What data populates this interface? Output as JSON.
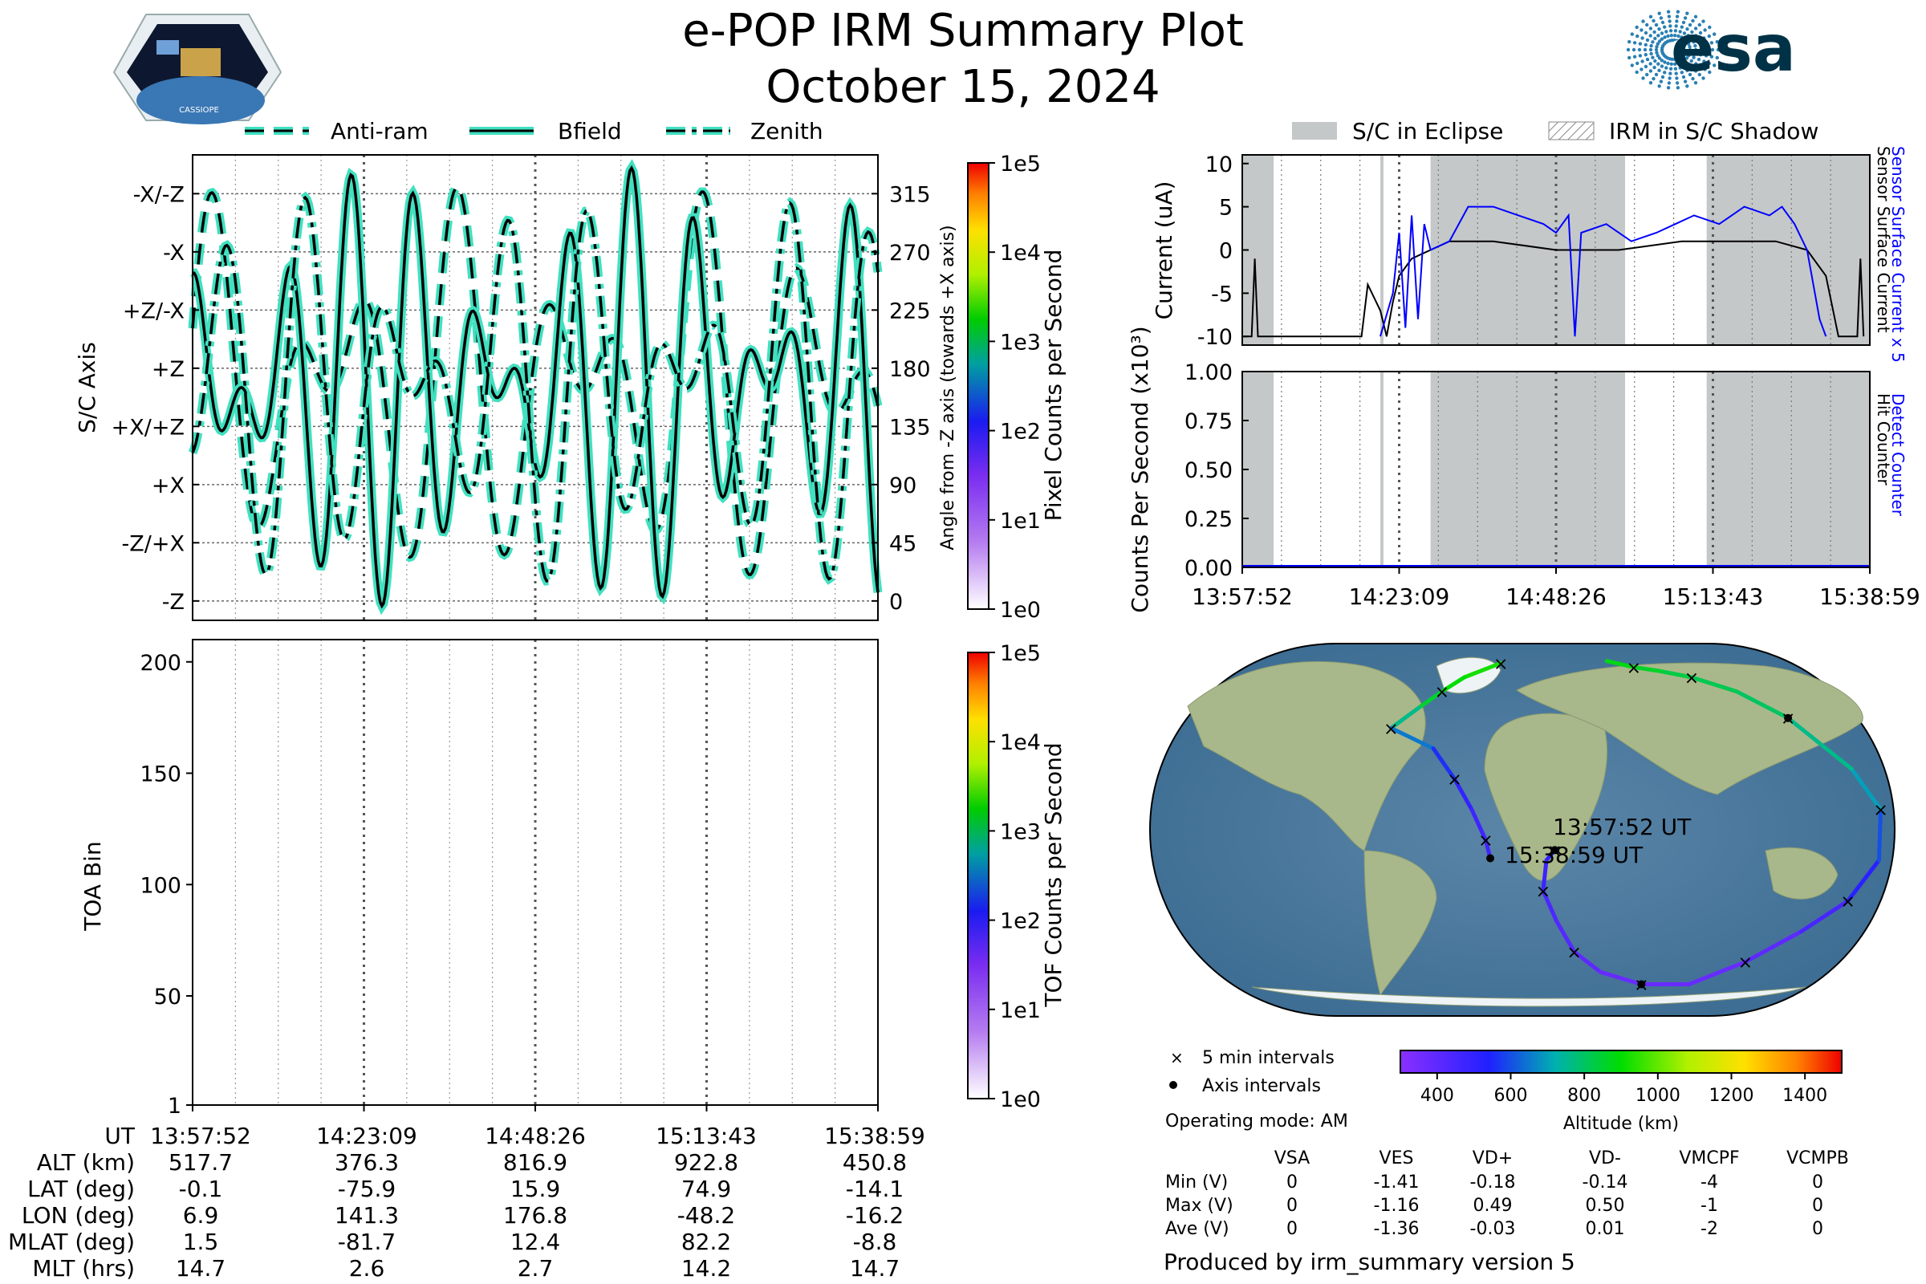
{
  "header": {
    "title": "e-POP IRM Summary Plot",
    "date": "October 15, 2024",
    "mission_logo": "CASSIOPE",
    "agency_logo": "esa",
    "colors": {
      "esa_blue": "#003247",
      "esa_light": "#2a7fb3"
    }
  },
  "time_ticks": [
    "13:57:52",
    "14:23:09",
    "14:48:26",
    "15:13:43",
    "15:38:59"
  ],
  "orientation_legend": [
    "Anti-ram",
    "Bfield",
    "Zenith"
  ],
  "eclipse_legend": [
    "S/C in Eclipse",
    "IRM in S/C Shadow"
  ],
  "chart_data": [
    {
      "id": "sc_axis_panel",
      "type": "line",
      "ylabel": "S/C Axis",
      "y2label": "Angle from -Z axis (towards +X axis)",
      "ylim": [
        -15,
        345
      ],
      "axis_labels": [
        "-Z",
        "-Z/+X",
        "+X",
        "+X/+Z",
        "+Z",
        "+Z/-X",
        "-X",
        "-X/-Z"
      ],
      "angle_ticks": [
        0,
        45,
        90,
        135,
        180,
        225,
        270,
        315
      ],
      "colorbar": {
        "label": "Pixel Counts per Second",
        "ticks": [
          "1e0",
          "1e1",
          "1e2",
          "1e3",
          "1e4",
          "1e5"
        ]
      },
      "line_color": "#40e0c0",
      "series": [
        {
          "name": "Anti-ram",
          "style": "dashed"
        },
        {
          "name": "Bfield",
          "style": "solid"
        },
        {
          "name": "Zenith",
          "style": "dashdot"
        }
      ]
    },
    {
      "id": "toa_panel",
      "type": "heatmap",
      "ylabel": "TOA Bin",
      "ylim": [
        1,
        210
      ],
      "yticks": [
        1,
        50,
        100,
        150,
        200
      ],
      "colorbar": {
        "label": "TOF Counts per Second",
        "ticks": [
          "1e0",
          "1e1",
          "1e2",
          "1e3",
          "1e4",
          "1e5"
        ]
      }
    },
    {
      "id": "current_panel",
      "type": "line",
      "ylabel": "Current (uA)",
      "ylim": [
        -11,
        11
      ],
      "yticks": [
        -10,
        -5,
        0,
        5,
        10
      ],
      "right_label_blue": "Sensor Surface Current x 5",
      "right_label_black": "Sensor Surface Current",
      "eclipse_intervals": [
        [
          0,
          0.05
        ],
        [
          0.22,
          0.225
        ],
        [
          0.3,
          0.61
        ],
        [
          0.74,
          1.0
        ]
      ],
      "series": [
        {
          "color": "#000000",
          "points": [
            [
              0,
              -10
            ],
            [
              0.015,
              -10
            ],
            [
              0.02,
              -1
            ],
            [
              0.025,
              -10
            ],
            [
              0.19,
              -10
            ],
            [
              0.2,
              -4
            ],
            [
              0.22,
              -7
            ],
            [
              0.23,
              -10
            ],
            [
              0.24,
              -6
            ],
            [
              0.25,
              -3
            ],
            [
              0.27,
              -1
            ],
            [
              0.3,
              0
            ],
            [
              0.33,
              1
            ],
            [
              0.4,
              1
            ],
            [
              0.5,
              0
            ],
            [
              0.6,
              0
            ],
            [
              0.7,
              1
            ],
            [
              0.85,
              1
            ],
            [
              0.9,
              0
            ],
            [
              0.93,
              -3
            ],
            [
              0.95,
              -10
            ],
            [
              0.98,
              -10
            ],
            [
              0.985,
              -1
            ],
            [
              0.99,
              -10
            ]
          ]
        },
        {
          "color": "#0000ff",
          "points": [
            [
              0.22,
              -10
            ],
            [
              0.24,
              -5
            ],
            [
              0.25,
              2
            ],
            [
              0.26,
              -9
            ],
            [
              0.27,
              4
            ],
            [
              0.28,
              -8
            ],
            [
              0.29,
              3
            ],
            [
              0.3,
              0
            ],
            [
              0.33,
              1
            ],
            [
              0.36,
              5
            ],
            [
              0.4,
              5
            ],
            [
              0.44,
              4
            ],
            [
              0.48,
              3
            ],
            [
              0.5,
              2
            ],
            [
              0.52,
              4
            ],
            [
              0.53,
              -10
            ],
            [
              0.54,
              2
            ],
            [
              0.58,
              3
            ],
            [
              0.62,
              1
            ],
            [
              0.66,
              2
            ],
            [
              0.69,
              3
            ],
            [
              0.72,
              4
            ],
            [
              0.76,
              3
            ],
            [
              0.8,
              5
            ],
            [
              0.84,
              4
            ],
            [
              0.86,
              5
            ],
            [
              0.88,
              3
            ],
            [
              0.9,
              0
            ],
            [
              0.92,
              -8
            ],
            [
              0.93,
              -10
            ]
          ]
        }
      ]
    },
    {
      "id": "counts_panel",
      "type": "line",
      "ylabel": "Counts Per Second (x10³)",
      "ylim": [
        0,
        1.0
      ],
      "yticks": [
        "0.00",
        "0.25",
        "0.50",
        "0.75",
        "1.00"
      ],
      "right_label_blue": "Detect Counter",
      "right_label_black": "Hit Counter",
      "series": [
        {
          "color": "#0000ff",
          "values": [
            0,
            0
          ]
        }
      ]
    },
    {
      "id": "ground_track",
      "type": "scatter",
      "start_label": "13:57:52 UT",
      "end_label": "15:38:59 UT",
      "legend": [
        "5 min intervals",
        "Axis intervals"
      ],
      "colorbar": {
        "label": "Altitude (km)",
        "ticks": [
          400,
          600,
          800,
          1000,
          1200,
          1400
        ]
      },
      "track": [
        [
          16,
          -10
        ],
        [
          12,
          -15
        ],
        [
          11,
          -30
        ],
        [
          20,
          -45
        ],
        [
          35,
          -60
        ],
        [
          60,
          -70
        ],
        [
          100,
          -76
        ],
        [
          140,
          -76
        ],
        [
          160,
          -65
        ],
        [
          170,
          -50
        ],
        [
          177,
          -35
        ],
        [
          178,
          -15
        ],
        [
          177,
          10
        ],
        [
          174,
          30
        ],
        [
          170,
          55
        ],
        [
          160,
          68
        ],
        [
          140,
          75
        ],
        [
          120,
          78
        ],
        [
          100,
          80
        ],
        [
          80,
          83
        ],
        [
          -20,
          82
        ],
        [
          -48,
          75
        ],
        [
          -60,
          68
        ],
        [
          -70,
          60
        ],
        [
          -80,
          50
        ],
        [
          -50,
          40
        ],
        [
          -35,
          25
        ],
        [
          -25,
          10
        ],
        [
          -18,
          -5
        ],
        [
          -16,
          -14
        ]
      ],
      "altitudes": [
        517,
        480,
        440,
        420,
        400,
        378,
        376,
        380,
        400,
        450,
        520,
        600,
        700,
        760,
        800,
        817,
        830,
        860,
        880,
        900,
        920,
        900,
        850,
        760,
        650,
        560,
        500,
        470,
        460,
        450
      ]
    }
  ],
  "ephemeris": {
    "header": "UT",
    "rows": [
      {
        "label": "ALT (km)",
        "values": [
          "517.7",
          "376.3",
          "816.9",
          "922.8",
          "450.8"
        ]
      },
      {
        "label": "LAT (deg)",
        "values": [
          "-0.1",
          "-75.9",
          "15.9",
          "74.9",
          "-14.1"
        ]
      },
      {
        "label": "LON (deg)",
        "values": [
          "6.9",
          "141.3",
          "176.8",
          "-48.2",
          "-16.2"
        ]
      },
      {
        "label": "MLAT (deg)",
        "values": [
          "1.5",
          "-81.7",
          "12.4",
          "82.2",
          "-8.8"
        ]
      },
      {
        "label": "MLT (hrs)",
        "values": [
          "14.7",
          "2.6",
          "2.7",
          "14.2",
          "14.7"
        ]
      }
    ]
  },
  "operating_mode": "Operating mode: AM",
  "voltage_table": {
    "columns": [
      "VSA",
      "VES",
      "VD+",
      "VD-",
      "VMCPF",
      "VCMPB"
    ],
    "rows": [
      {
        "label": "Min (V)",
        "values": [
          "0",
          "-1.41",
          "-0.18",
          "-0.14",
          "-4",
          "0"
        ]
      },
      {
        "label": "Max (V)",
        "values": [
          "0",
          "-1.16",
          "0.49",
          "0.50",
          "-1",
          "0"
        ]
      },
      {
        "label": "Ave (V)",
        "values": [
          "0",
          "-1.36",
          "-0.03",
          "0.01",
          "-2",
          "0"
        ]
      }
    ]
  },
  "footer": "Produced by irm_summary version 5"
}
